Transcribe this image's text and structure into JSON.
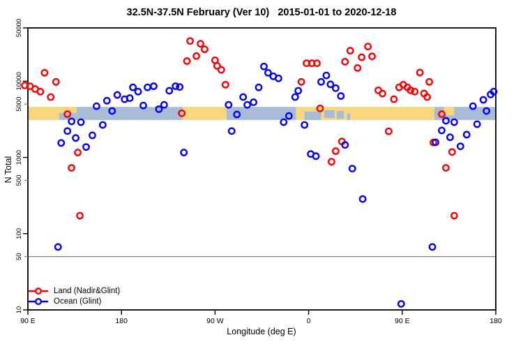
{
  "title": "32.5N-37.5N February (Ver 10)   2015-01-01 to 2020-12-18",
  "chart_data": {
    "type": "scatter",
    "title": "32.5N-37.5N February (Ver 10)   2015-01-01 to 2020-12-18",
    "xlabel": "Longitude (deg E)",
    "ylabel": "N Total",
    "x_axis": {
      "min": 90,
      "max": 540,
      "ticks": [
        {
          "value": 90,
          "label": "90 E"
        },
        {
          "value": 180,
          "label": "180"
        },
        {
          "value": 270,
          "label": "90 W"
        },
        {
          "value": 360,
          "label": "0"
        },
        {
          "value": 450,
          "label": "90 E"
        },
        {
          "value": 540,
          "label": "180"
        }
      ]
    },
    "y_axis": {
      "scale": "log10",
      "min": 10,
      "max": 50000,
      "ticks": [
        {
          "value": 10,
          "label": "10",
          "minor": false
        },
        {
          "value": 50,
          "label": "50",
          "minor": true
        },
        {
          "value": 100,
          "label": "100",
          "minor": false
        },
        {
          "value": 500,
          "label": "500",
          "minor": true
        },
        {
          "value": 1000,
          "label": "1000",
          "minor": false
        },
        {
          "value": 5000,
          "label": "5000",
          "minor": true
        },
        {
          "value": 10000,
          "label": "10000",
          "minor": false
        },
        {
          "value": 50000,
          "label": "50000",
          "minor": false
        }
      ]
    },
    "reference_line": {
      "value": 50,
      "color": "#7f7f7f"
    },
    "land_ocean_strip": {
      "description": "land/ocean mask strip for 32.5N-37.5N drawn across the plot",
      "top_value": 4600,
      "bottom_value": 3100,
      "land_color": "#F9D77C",
      "ocean_color": "#A8BCD8",
      "segments": [
        {
          "from": 90,
          "to": 120,
          "type": "land"
        },
        {
          "from": 120,
          "to": 239,
          "type": "ocean"
        },
        {
          "from": 239,
          "to": 281,
          "type": "land"
        },
        {
          "from": 281,
          "to": 348,
          "type": "ocean"
        },
        {
          "from": 348,
          "to": 481,
          "type": "land"
        },
        {
          "from": 481,
          "to": 540,
          "type": "ocean"
        }
      ],
      "patches": [
        {
          "from": 120,
          "to": 137,
          "type": "land",
          "frac_top": 0.0,
          "frac_bottom": 0.45
        },
        {
          "from": 356,
          "to": 372,
          "type": "ocean",
          "frac_top": 0.35,
          "frac_bottom": 1.0
        },
        {
          "from": 375,
          "to": 385,
          "type": "ocean",
          "frac_top": 0.25,
          "frac_bottom": 0.85
        },
        {
          "from": 387,
          "to": 394,
          "type": "ocean",
          "frac_top": 0.3,
          "frac_bottom": 0.9
        },
        {
          "from": 397,
          "to": 400,
          "type": "ocean",
          "frac_top": 0.5,
          "frac_bottom": 1.0
        },
        {
          "from": 490,
          "to": 500,
          "type": "land",
          "frac_top": 0.0,
          "frac_bottom": 0.65
        }
      ]
    },
    "series": [
      {
        "name": "Land (Nadir&Glint)",
        "color": "#FF0000",
        "points": [
          [
            87,
            8800
          ],
          [
            92,
            8600
          ],
          [
            97,
            7900
          ],
          [
            102,
            7300
          ],
          [
            106,
            12900
          ],
          [
            117,
            9800
          ],
          [
            112,
            6200
          ],
          [
            128,
            3700
          ],
          [
            138,
            1160
          ],
          [
            132,
            730
          ],
          [
            140,
            172
          ],
          [
            246,
            33700
          ],
          [
            256,
            31000
          ],
          [
            260,
            26200
          ],
          [
            252,
            21400
          ],
          [
            243,
            18400
          ],
          [
            270,
            18800
          ],
          [
            272,
            15900
          ],
          [
            276,
            14100
          ],
          [
            280,
            9000
          ],
          [
            238,
            3800
          ],
          [
            358,
            17200
          ],
          [
            363,
            17200
          ],
          [
            368,
            17200
          ],
          [
            353,
            9800
          ],
          [
            395,
            18000
          ],
          [
            400,
            25100
          ],
          [
            411,
            20600
          ],
          [
            407,
            14900
          ],
          [
            417,
            28500
          ],
          [
            421,
            21200
          ],
          [
            427,
            7600
          ],
          [
            371,
            4400
          ],
          [
            392,
            1620
          ],
          [
            386,
            1210
          ],
          [
            382,
            880
          ],
          [
            431,
            6900
          ],
          [
            442,
            5800
          ],
          [
            447,
            8300
          ],
          [
            451,
            9000
          ],
          [
            455,
            8300
          ],
          [
            458,
            7600
          ],
          [
            462,
            7300
          ],
          [
            467,
            13000
          ],
          [
            476,
            9800
          ],
          [
            471,
            6900
          ],
          [
            474,
            6200
          ],
          [
            488,
            3700
          ],
          [
            437,
            2200
          ],
          [
            480,
            1570
          ],
          [
            498,
            1180
          ],
          [
            492,
            730
          ],
          [
            500,
            172
          ]
        ]
      },
      {
        "name": "Ocean (Glint)",
        "color": "#0000FF",
        "points": [
          [
            119,
            67
          ],
          [
            122,
            1550
          ],
          [
            128,
            2220
          ],
          [
            132,
            2970
          ],
          [
            141,
            2900
          ],
          [
            136,
            1800
          ],
          [
            146,
            1370
          ],
          [
            152,
            1950
          ],
          [
            156,
            4700
          ],
          [
            162,
            2670
          ],
          [
            166,
            5550
          ],
          [
            171,
            4070
          ],
          [
            176,
            6600
          ],
          [
            183,
            5800
          ],
          [
            188,
            6000
          ],
          [
            191,
            8300
          ],
          [
            196,
            7300
          ],
          [
            201,
            4800
          ],
          [
            205,
            8300
          ],
          [
            211,
            8600
          ],
          [
            216,
            4300
          ],
          [
            221,
            4900
          ],
          [
            226,
            7500
          ],
          [
            232,
            8600
          ],
          [
            236,
            8400
          ],
          [
            240,
            1160
          ],
          [
            283,
            4900
          ],
          [
            286,
            2220
          ],
          [
            291,
            3660
          ],
          [
            297,
            6200
          ],
          [
            301,
            4900
          ],
          [
            307,
            5300
          ],
          [
            312,
            8300
          ],
          [
            317,
            15600
          ],
          [
            321,
            12900
          ],
          [
            326,
            11600
          ],
          [
            331,
            10900
          ],
          [
            336,
            2900
          ],
          [
            341,
            3500
          ],
          [
            347,
            6200
          ],
          [
            350,
            7500
          ],
          [
            356,
            2670
          ],
          [
            362,
            1110
          ],
          [
            367,
            1040
          ],
          [
            372,
            9800
          ],
          [
            377,
            11900
          ],
          [
            381,
            9100
          ],
          [
            386,
            8100
          ],
          [
            391,
            6400
          ],
          [
            395,
            1460
          ],
          [
            402,
            715
          ],
          [
            412,
            285
          ],
          [
            449,
            12
          ],
          [
            479,
            67
          ],
          [
            482,
            1580
          ],
          [
            488,
            2260
          ],
          [
            492,
            3030
          ],
          [
            496,
            1840
          ],
          [
            500,
            2900
          ],
          [
            506,
            1400
          ],
          [
            512,
            1990
          ],
          [
            518,
            4700
          ],
          [
            522,
            2730
          ],
          [
            528,
            5700
          ],
          [
            531,
            4070
          ],
          [
            535,
            6700
          ],
          [
            538,
            7300
          ]
        ]
      }
    ],
    "legend": {
      "position": "bottom-left"
    },
    "grid": false
  }
}
